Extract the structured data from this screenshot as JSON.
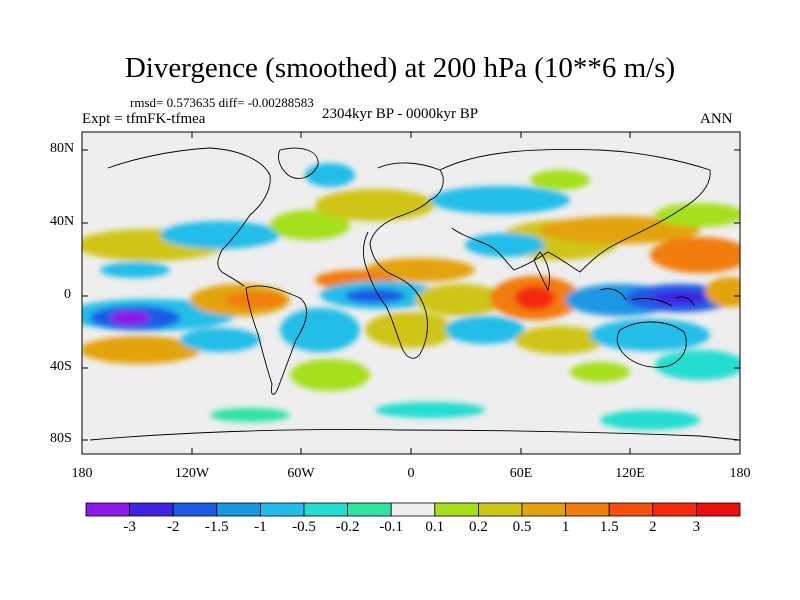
{
  "title": "Divergence (smoothed) at 200 hPa (10**6 m/s)",
  "stats": "rmsd= 0.573635 diff= -0.00288583",
  "experiment": "Expt = tfmFK-tfmea",
  "period": "2304kyr BP - 0000kyr BP",
  "season": "ANN",
  "lat_ticks": [
    "80N",
    "40N",
    "0",
    "40S",
    "80S"
  ],
  "lon_ticks": [
    "180",
    "120W",
    "60W",
    "0",
    "60E",
    "120E",
    "180"
  ],
  "colorbar": {
    "labels": [
      "-3",
      "-2",
      "-1.5",
      "-1",
      "-0.5",
      "-0.2",
      "-0.1",
      "0.1",
      "0.2",
      "0.5",
      "1",
      "1.5",
      "2",
      "3"
    ],
    "colors": [
      "#8c17e8",
      "#3f24e0",
      "#1d5ae6",
      "#1a97e3",
      "#21bde8",
      "#23ddd0",
      "#2fe3a0",
      "#eeeeee",
      "#a6df1c",
      "#cfc515",
      "#e3a30e",
      "#f27c0f",
      "#f5500d",
      "#f52a0d",
      "#ee0d0d"
    ]
  },
  "palette": {
    "background_field": "#eeeeee",
    "coast": "#000000",
    "frame": "#000000"
  }
}
